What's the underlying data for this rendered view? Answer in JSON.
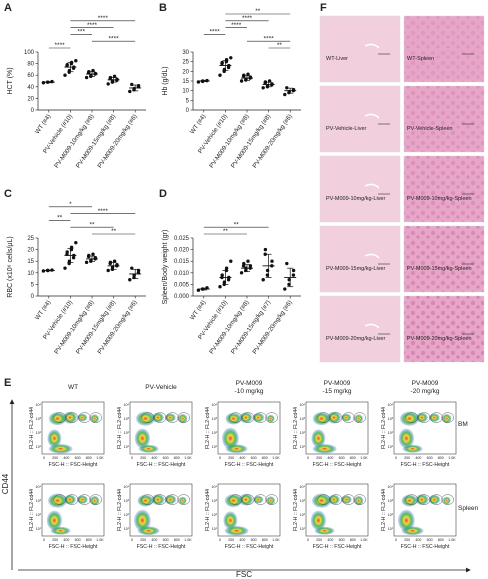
{
  "chart_data": [
    {
      "type": "dot",
      "panel": "A",
      "y_label": "HCT (%)",
      "categories": [
        "WT (#4)",
        "PV-Vehicle (#10)",
        "PV-M009-10mg/kg (#8)",
        "PV-M009-15mg/kg (#8)",
        "PV-M009-20mg/kg (#6)"
      ],
      "points": [
        [
          47,
          48,
          48,
          49
        ],
        [
          60,
          65,
          68,
          72,
          74,
          76,
          78,
          80,
          82,
          85
        ],
        [
          56,
          58,
          60,
          62,
          63,
          64,
          66,
          68
        ],
        [
          45,
          48,
          50,
          51,
          53,
          54,
          56,
          58
        ],
        [
          32,
          35,
          37,
          40,
          42,
          44
        ]
      ],
      "means": [
        48,
        74,
        62,
        52,
        38
      ],
      "sd": [
        1,
        8,
        4,
        4,
        5
      ],
      "ylim": [
        0,
        100
      ],
      "yticks": [
        0,
        20,
        40,
        60,
        80,
        100
      ],
      "brackets": [
        {
          "between": [
            1,
            4
          ],
          "label": "****"
        },
        {
          "between": [
            1,
            3
          ],
          "label": "****"
        },
        {
          "between": [
            1,
            2
          ],
          "label": "***"
        },
        {
          "between": [
            2,
            4
          ],
          "label": "****"
        },
        {
          "between": [
            0,
            1
          ],
          "label": "****"
        }
      ]
    },
    {
      "type": "dot",
      "panel": "B",
      "y_label": "Hb (g/dL)",
      "categories": [
        "WT (#4)",
        "PV-Vehicle (#10)",
        "PV-M009-10mg/kg (#8)",
        "PV-M009-15mg/kg (#8)",
        "PV-M009-20mg/kg (#6)"
      ],
      "points": [
        [
          14.5,
          14.8,
          15,
          15.2
        ],
        [
          18,
          20,
          21,
          22,
          23,
          24,
          24.5,
          25,
          26,
          27
        ],
        [
          15,
          15.5,
          16,
          16.5,
          17,
          17.5,
          18,
          18.5
        ],
        [
          11.5,
          12,
          12.5,
          13,
          13.5,
          14,
          14.5,
          15
        ],
        [
          8,
          9,
          9.5,
          10,
          10.5,
          11.5
        ]
      ],
      "means": [
        15,
        23,
        16.5,
        13.2,
        10
      ],
      "sd": [
        0.3,
        2.5,
        1.2,
        1.2,
        1.3
      ],
      "ylim": [
        0,
        30
      ],
      "yticks": [
        0,
        5,
        10,
        15,
        20,
        25,
        30
      ],
      "brackets": [
        {
          "between": [
            1,
            4
          ],
          "label": "**"
        },
        {
          "between": [
            1,
            3
          ],
          "label": "****"
        },
        {
          "between": [
            1,
            2
          ],
          "label": "****"
        },
        {
          "between": [
            0,
            1
          ],
          "label": "****"
        },
        {
          "between": [
            2,
            4
          ],
          "label": "****"
        },
        {
          "between": [
            3,
            4
          ],
          "label": "**"
        }
      ]
    },
    {
      "type": "dot",
      "panel": "C",
      "y_label": "RBC (x10⁶ cells/μL)",
      "categories": [
        "WT (#4)",
        "PV-Vehicle (#10)",
        "PV-M009-10mg/kg (#8)",
        "PV-M009-15mg/kg (#8)",
        "PV-M009-20mg/kg (#6)"
      ],
      "points": [
        [
          10.8,
          11,
          11,
          11.2
        ],
        [
          12,
          14,
          15,
          16.5,
          17.5,
          18,
          19,
          20,
          21,
          23
        ],
        [
          14.5,
          15,
          15.5,
          16,
          16.5,
          17,
          17.5,
          18
        ],
        [
          11,
          11.5,
          12.5,
          13,
          13.5,
          14,
          14.5,
          15
        ],
        [
          7,
          8,
          9,
          10,
          11,
          12
        ]
      ],
      "means": [
        11,
        17.5,
        16,
        13,
        9.5
      ],
      "sd": [
        0.2,
        3,
        1.2,
        1.5,
        2
      ],
      "ylim": [
        0,
        25
      ],
      "yticks": [
        0,
        5,
        10,
        15,
        20,
        25
      ],
      "brackets": [
        {
          "between": [
            0,
            2
          ],
          "label": "*"
        },
        {
          "between": [
            1,
            4
          ],
          "label": "****"
        },
        {
          "between": [
            0,
            1
          ],
          "label": "**"
        },
        {
          "between": [
            1,
            3
          ],
          "label": "**"
        },
        {
          "between": [
            2,
            4
          ],
          "label": "**"
        }
      ]
    },
    {
      "type": "dot",
      "panel": "D",
      "y_label": "Spleen/Body weight (gr)",
      "categories": [
        "WT (#4)",
        "PV-Vehicle (#10)",
        "PV-M009-10mg/kg (#8)",
        "PV-M009-15mg/kg (#7)",
        "PV-M009-20mg/kg (#6)"
      ],
      "points": [
        [
          0.0025,
          0.003,
          0.003,
          0.0035
        ],
        [
          0.004,
          0.005,
          0.006,
          0.007,
          0.008,
          0.008,
          0.009,
          0.011,
          0.012,
          0.015
        ],
        [
          0.01,
          0.011,
          0.012,
          0.012,
          0.013,
          0.013,
          0.014,
          0.015
        ],
        [
          0.007,
          0.009,
          0.011,
          0.013,
          0.015,
          0.018,
          0.02
        ],
        [
          0.003,
          0.005,
          0.007,
          0.009,
          0.011,
          0.014
        ]
      ],
      "means": [
        0.003,
        0.008,
        0.012,
        0.013,
        0.008
      ],
      "sd": [
        0.0004,
        0.003,
        0.0015,
        0.005,
        0.004
      ],
      "ylim": [
        0,
        0.025
      ],
      "yticks": [
        {
          "value": 0,
          "label": "0.000"
        },
        {
          "value": 0.005,
          "label": "0.005"
        },
        {
          "value": 0.01,
          "label": "0.010"
        },
        {
          "value": 0.015,
          "label": "0.015"
        },
        {
          "value": 0.02,
          "label": "0.020"
        },
        {
          "value": 0.025,
          "label": "0.025"
        }
      ],
      "brackets": [
        {
          "between": [
            0,
            3
          ],
          "label": "**"
        },
        {
          "between": [
            0,
            2
          ],
          "label": "**"
        }
      ]
    }
  ],
  "flow": {
    "panel": "E",
    "columns": [
      [
        "WT"
      ],
      [
        "PV-Vehicle"
      ],
      [
        "PV-M009",
        "-10 mg/kg"
      ],
      [
        "PV-M009",
        "-15 mg/kg"
      ],
      [
        "PV-M009",
        "-20 mg/kg"
      ]
    ],
    "rows": [
      "BM",
      "Spleen"
    ],
    "plot_y_label": "FL2-H :: FL2-cd44",
    "plot_x_label": "FSC-H :: FSC-Height",
    "xticks": [
      "0",
      "200",
      "400",
      "600",
      "800",
      "1.0K"
    ],
    "yticks": [
      "10¹",
      "10²",
      "10³",
      "10⁴"
    ],
    "y_title": "CD44",
    "x_title": "FSC"
  },
  "histology": {
    "panel": "F",
    "labels": [
      "WT-Liver",
      "WT-Spleen",
      "PV-Vehicle-Liver",
      "PV-Vehicle-Spleen",
      "PV-M009-10mg/kg-Liver",
      "PV-M009-10mg/kg-Spleen",
      "PV-M009-15mg/kg-Liver",
      "PV-M009-15mg/kg-Spleen",
      "PV-M009-20mg/kg-Liver",
      "PV-M009-20mg/kg-Spleen"
    ]
  }
}
